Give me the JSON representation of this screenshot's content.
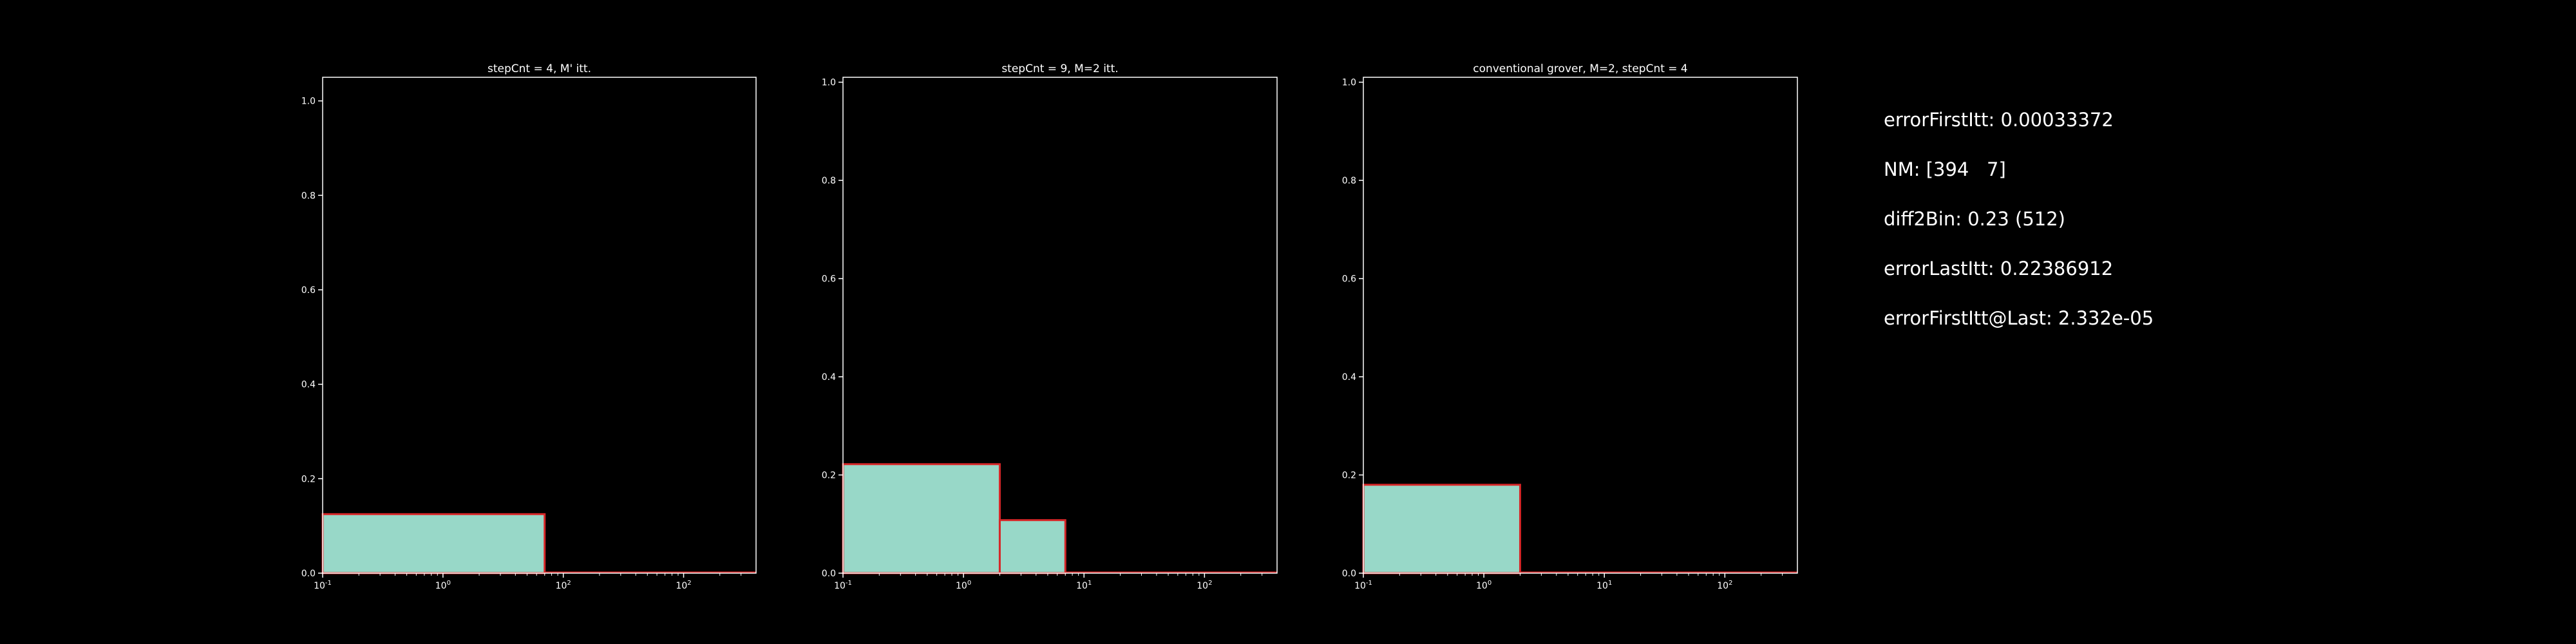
{
  "chart_data": [
    {
      "type": "bar",
      "title": "stepCnt = 4, M' itt.",
      "xlabel": "",
      "ylabel": "",
      "x_scale": "log",
      "xlim": [
        0.1,
        400
      ],
      "ylim": [
        0,
        1.05
      ],
      "x_ticks": [
        {
          "label": "10",
          "exp": "-1"
        },
        {
          "label": "10",
          "exp": "0"
        },
        {
          "label": "10",
          "exp": "2"
        },
        {
          "label": "10",
          "exp": "2"
        }
      ],
      "y_ticks": [
        "0.0",
        "0.2",
        "0.4",
        "0.6",
        "0.8",
        "1.0"
      ],
      "y_tick_values": [
        0,
        0.2,
        0.4,
        0.6,
        0.8,
        1.0
      ],
      "bins": [
        {
          "x0": 0.1,
          "x1": 7,
          "value": 0.125
        },
        {
          "x0": 7,
          "x1": 400,
          "value": 0
        }
      ],
      "face_color": "#98d8c8",
      "edge_color": "#d62728",
      "grid": false,
      "legend": "none"
    },
    {
      "type": "bar",
      "title": "stepCnt = 9, M=2 itt.",
      "xlabel": "",
      "ylabel": "",
      "x_scale": "log",
      "xlim": [
        0.1,
        400
      ],
      "ylim": [
        0,
        1.01
      ],
      "x_ticks": [
        {
          "label": "10",
          "exp": "-1"
        },
        {
          "label": "10",
          "exp": "0"
        },
        {
          "label": "10",
          "exp": "1"
        },
        {
          "label": "10",
          "exp": "2"
        }
      ],
      "y_ticks": [
        "0.0",
        "0.2",
        "0.4",
        "0.6",
        "0.8",
        "1.0"
      ],
      "y_tick_values": [
        0,
        0.2,
        0.4,
        0.6,
        0.8,
        1.0
      ],
      "bins": [
        {
          "x0": 0.1,
          "x1": 2,
          "value": 0.222
        },
        {
          "x0": 2,
          "x1": 7,
          "value": 0.108
        },
        {
          "x0": 7,
          "x1": 400,
          "value": 0
        }
      ],
      "face_color": "#98d8c8",
      "edge_color": "#d62728",
      "grid": false,
      "legend": "none"
    },
    {
      "type": "bar",
      "title": "conventional grover, M=2, stepCnt = 4",
      "xlabel": "",
      "ylabel": "",
      "x_scale": "log",
      "xlim": [
        0.1,
        400
      ],
      "ylim": [
        0,
        1.01
      ],
      "x_ticks": [
        {
          "label": "10",
          "exp": "-1"
        },
        {
          "label": "10",
          "exp": "0"
        },
        {
          "label": "10",
          "exp": "1"
        },
        {
          "label": "10",
          "exp": "2"
        }
      ],
      "y_ticks": [
        "0.0",
        "0.2",
        "0.4",
        "0.6",
        "0.8",
        "1.0"
      ],
      "y_tick_values": [
        0,
        0.2,
        0.4,
        0.6,
        0.8,
        1.0
      ],
      "bins": [
        {
          "x0": 0.1,
          "x1": 2,
          "value": 0.18
        },
        {
          "x0": 2,
          "x1": 400,
          "value": 0
        }
      ],
      "face_color": "#98d8c8",
      "edge_color": "#d62728",
      "grid": false,
      "legend": "none"
    }
  ],
  "info": {
    "lines": [
      "errorFirstItt: 0.00033372",
      "NM: [394   7]",
      "diff2Bin: 0.23 (512)",
      "errorLastItt: 0.22386912",
      "errorFirstItt@Last: 2.332e-05"
    ]
  }
}
